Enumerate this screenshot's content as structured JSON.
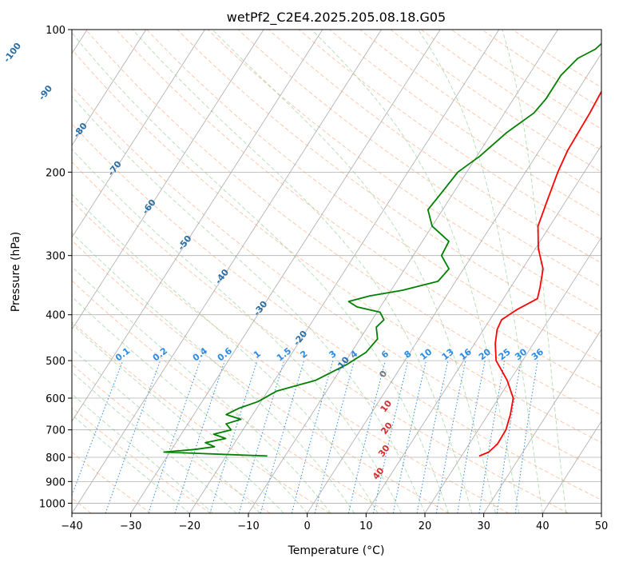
{
  "chart_data": {
    "type": "line",
    "title": "wetPf2_C2E4.2025.205.08.18.G05",
    "xlabel": "Temperature (°C)",
    "ylabel": "Pressure (hPa)",
    "xlim": [
      -40,
      50
    ],
    "ylim": [
      1050,
      100
    ],
    "y_scale": "log",
    "x_ticks": [
      -40,
      -30,
      -20,
      -10,
      0,
      10,
      20,
      30,
      40,
      50
    ],
    "x_tick_labels": [
      "−40",
      "−30",
      "−20",
      "−10",
      "0",
      "10",
      "20",
      "30",
      "40",
      "50"
    ],
    "y_ticks": [
      100,
      200,
      300,
      400,
      500,
      600,
      700,
      800,
      900,
      1000
    ],
    "y_tick_labels": [
      "100",
      "200",
      "300",
      "400",
      "500",
      "600",
      "700",
      "800",
      "900",
      "1000"
    ],
    "grid": true,
    "colors": {
      "temperature": "#ff0000",
      "dewpoint": "#008000",
      "isotherm": "#aaaaaa",
      "dry_adiabat": "#ff9966",
      "moist_adiabat": "#66bb66",
      "mixing_ratio": "#2a8ae6"
    },
    "series": [
      {
        "key": "temperature",
        "p": [
          100,
          110,
          130,
          150,
          180,
          200,
          230,
          260,
          290,
          320,
          350,
          370,
          390,
          410,
          430,
          460,
          500,
          550,
          600,
          650,
          700,
          750,
          780,
          795
        ],
        "t": [
          5.5,
          4.3,
          4.0,
          4.5,
          4.8,
          5.5,
          6.8,
          8.0,
          10.5,
          13.5,
          15.0,
          15.8,
          13.5,
          12.0,
          12.3,
          13.5,
          15.5,
          19.5,
          22.5,
          23.8,
          24.7,
          24.8,
          24.2,
          23.0
        ]
      },
      {
        "key": "dewpoint",
        "p": [
          100,
          110,
          115,
          125,
          140,
          150,
          165,
          185,
          200,
          220,
          240,
          260,
          280,
          300,
          320,
          340,
          355,
          365,
          375,
          385,
          395,
          410,
          425,
          450,
          480,
          510,
          550,
          580,
          610,
          630,
          650,
          665,
          680,
          700,
          715,
          730,
          745,
          760,
          770,
          780,
          790,
          795
        ],
        "t": [
          0.0,
          -1.5,
          -3.5,
          -4.5,
          -4.5,
          -5.0,
          -7.5,
          -9.5,
          -11.5,
          -12.0,
          -12.5,
          -10.0,
          -5.5,
          -5.2,
          -2.5,
          -3.0,
          -8.0,
          -13.0,
          -16.0,
          -14.0,
          -9.5,
          -8.0,
          -8.5,
          -7.0,
          -7.5,
          -9.5,
          -13.0,
          -18.5,
          -20.5,
          -23.0,
          -24.5,
          -21.5,
          -23.5,
          -22.0,
          -24.5,
          -22.0,
          -25.0,
          -23.0,
          -26.0,
          -31.0,
          -19.0,
          -13.0
        ]
      }
    ],
    "mixing_ratio_labels": [
      "0.1",
      "0.2",
      "0.4",
      "0.6",
      "1",
      "1.5",
      "2",
      "3",
      "4",
      "6",
      "8",
      "10",
      "13",
      "16",
      "20",
      "25",
      "30",
      "36"
    ],
    "dry_adiabat_labels": [
      "-100",
      "-90",
      "-80",
      "-70",
      "-60",
      "-50",
      "-40",
      "-30",
      "-20",
      "-10"
    ],
    "moist_adiabat_labels": [
      "0",
      "10",
      "20",
      "30",
      "40"
    ]
  }
}
